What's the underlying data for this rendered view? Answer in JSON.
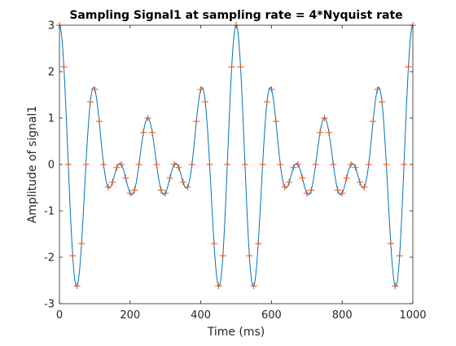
{
  "chart_data": {
    "type": "line",
    "title": "Sampling Signal1 at sampling rate = 4*Nyquist rate",
    "xlabel": "Time (ms)",
    "ylabel": "Amplitude of signal1",
    "xlim": [
      0,
      1000
    ],
    "ylim": [
      -3,
      3
    ],
    "x_ticks": [
      0,
      200,
      400,
      600,
      800,
      1000
    ],
    "y_ticks": [
      -3,
      -2,
      -1,
      0,
      1,
      2,
      3
    ],
    "x_tick_labels": [
      "0",
      "200",
      "400",
      "600",
      "800",
      "1000"
    ],
    "y_tick_labels": [
      "-3",
      "-2",
      "-1",
      "0",
      "1",
      "2",
      "3"
    ],
    "grid": false,
    "series": [
      {
        "kind": "continuous-line",
        "color": "#0072bd",
        "function": "cos(2*pi*10*t) + cos(2*pi*8*t) + cos(2*pi*12*t), t in seconds",
        "x_range": [
          0,
          1000
        ],
        "samples": 1001
      },
      {
        "kind": "sample-markers",
        "marker": "+",
        "color": "#d95319",
        "sampling_interval_ms": 12.5,
        "x_range": [
          0,
          1000
        ]
      }
    ]
  }
}
